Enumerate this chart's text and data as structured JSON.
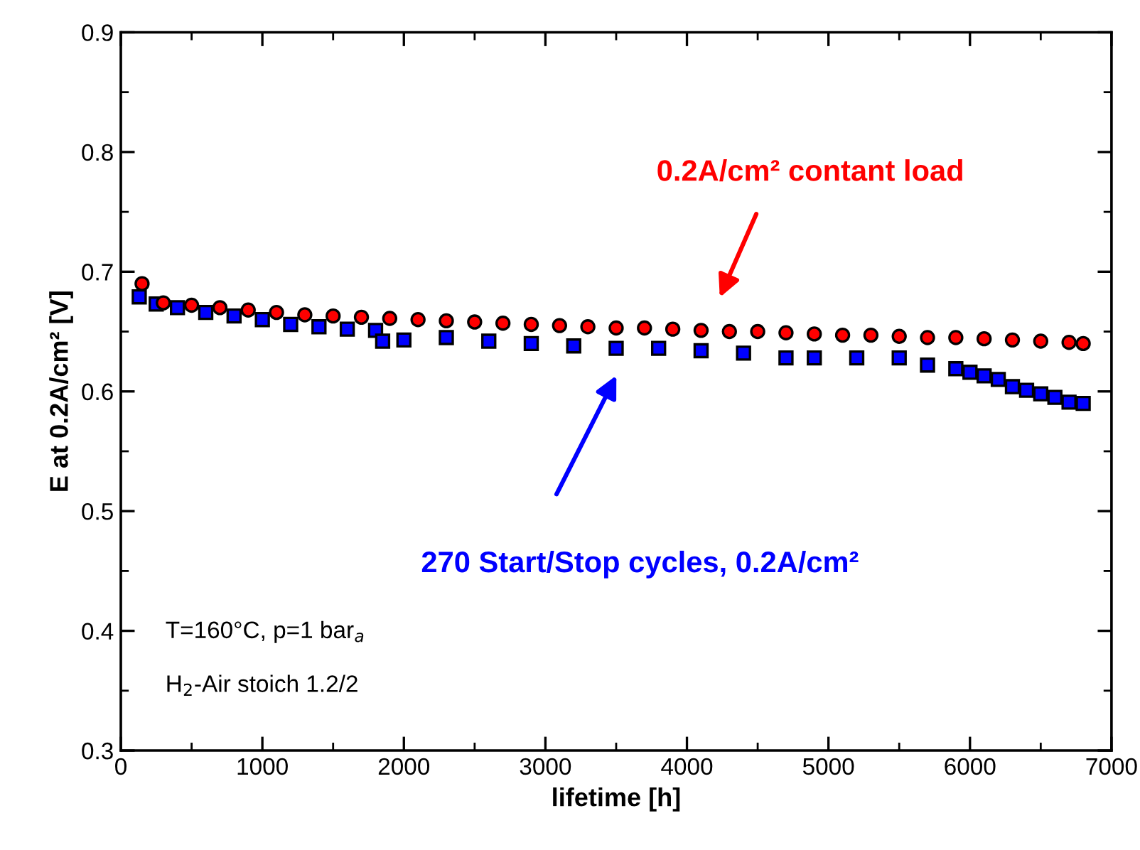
{
  "chart_data": {
    "type": "scatter",
    "xlabel": "lifetime [h]",
    "ylabel": "E at 0.2A/cm² [V]",
    "xlim": [
      0,
      7000
    ],
    "xticks": [
      0,
      1000,
      2000,
      3000,
      4000,
      5000,
      6000,
      7000
    ],
    "ylim": [
      0.3,
      0.9
    ],
    "yticks": [
      0.3,
      0.4,
      0.5,
      0.6,
      0.7,
      0.8,
      0.9
    ],
    "grid": false,
    "legend": false,
    "series": [
      {
        "color": "#ff0000",
        "marker": "circle",
        "x": [
          150,
          300,
          500,
          700,
          900,
          1100,
          1300,
          1500,
          1700,
          1900,
          2100,
          2300,
          2500,
          2700,
          2900,
          3100,
          3300,
          3500,
          3700,
          3900,
          4100,
          4300,
          4500,
          4700,
          4900,
          5100,
          5300,
          5500,
          5700,
          5900,
          6100,
          6300,
          6500,
          6700,
          6800
        ],
        "values": [
          0.69,
          0.674,
          0.672,
          0.67,
          0.668,
          0.666,
          0.664,
          0.663,
          0.662,
          0.661,
          0.66,
          0.659,
          0.658,
          0.657,
          0.656,
          0.655,
          0.654,
          0.653,
          0.653,
          0.652,
          0.651,
          0.65,
          0.65,
          0.649,
          0.648,
          0.647,
          0.647,
          0.646,
          0.645,
          0.645,
          0.644,
          0.643,
          0.642,
          0.641,
          0.64
        ]
      },
      {
        "color": "#0000ff",
        "marker": "square",
        "x": [
          130,
          250,
          400,
          600,
          800,
          1000,
          1200,
          1400,
          1600,
          1800,
          1850,
          2000,
          2300,
          2600,
          2900,
          3200,
          3500,
          3800,
          4100,
          4400,
          4700,
          4900,
          5200,
          5500,
          5700,
          5900,
          6000,
          6100,
          6200,
          6300,
          6400,
          6500,
          6600,
          6700,
          6800
        ],
        "values": [
          0.679,
          0.673,
          0.67,
          0.666,
          0.663,
          0.66,
          0.656,
          0.654,
          0.652,
          0.651,
          0.642,
          0.643,
          0.645,
          0.642,
          0.64,
          0.638,
          0.636,
          0.636,
          0.634,
          0.632,
          0.628,
          0.628,
          0.628,
          0.628,
          0.622,
          0.619,
          0.616,
          0.613,
          0.61,
          0.604,
          0.601,
          0.598,
          0.595,
          0.591,
          0.59
        ]
      }
    ],
    "annotations": [
      "0.2A/cm² contant load",
      "270 Start/Stop cycles, 0.2A/cm²",
      "T=160°C, p=1 bar$_{a}$",
      "H$_{2}$-Air stoich 1.2/2"
    ]
  }
}
